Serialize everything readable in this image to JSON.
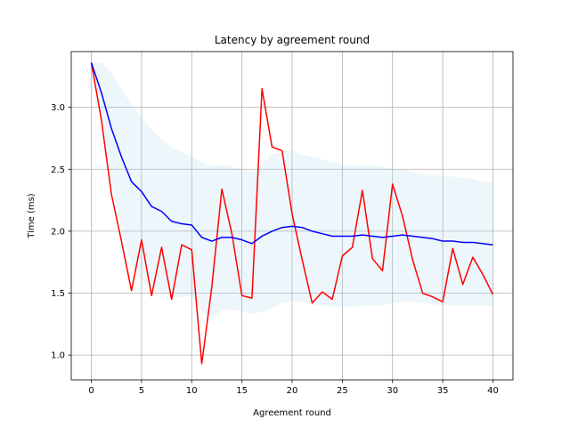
{
  "chart_data": {
    "type": "line",
    "title": "Latency by agreement round",
    "xlabel": "Agreement round",
    "ylabel": "Time (ms)",
    "xlim": [
      -2,
      42
    ],
    "ylim": [
      0.8,
      3.45
    ],
    "xticks": [
      0,
      5,
      10,
      15,
      20,
      25,
      30,
      35,
      40
    ],
    "yticks": [
      1.0,
      1.5,
      2.0,
      2.5,
      3.0
    ],
    "ytick_labels": [
      "1.0",
      "1.5",
      "2.0",
      "2.5",
      "3.0"
    ],
    "grid": true,
    "x": [
      0,
      1,
      2,
      3,
      4,
      5,
      6,
      7,
      8,
      9,
      10,
      11,
      12,
      13,
      14,
      15,
      16,
      17,
      18,
      19,
      20,
      21,
      22,
      23,
      24,
      25,
      26,
      27,
      28,
      29,
      30,
      31,
      32,
      33,
      34,
      35,
      36,
      37,
      38,
      39,
      40
    ],
    "series": [
      {
        "color": "#ff0000",
        "values": [
          3.36,
          2.9,
          2.3,
          1.92,
          1.52,
          1.93,
          1.48,
          1.87,
          1.45,
          1.89,
          1.85,
          0.93,
          1.55,
          2.34,
          1.98,
          1.48,
          1.46,
          3.15,
          2.68,
          2.65,
          2.14,
          1.77,
          1.42,
          1.51,
          1.45,
          1.8,
          1.87,
          2.33,
          1.78,
          1.68,
          2.38,
          2.12,
          1.77,
          1.5,
          1.47,
          1.43,
          1.86,
          1.57,
          1.79,
          1.65,
          1.49
        ]
      },
      {
        "color": "#0000ff",
        "values": [
          3.36,
          3.12,
          2.83,
          2.6,
          2.4,
          2.32,
          2.2,
          2.16,
          2.08,
          2.06,
          2.05,
          1.95,
          1.92,
          1.95,
          1.95,
          1.93,
          1.9,
          1.96,
          2.0,
          2.03,
          2.04,
          2.03,
          2.0,
          1.98,
          1.96,
          1.96,
          1.96,
          1.97,
          1.96,
          1.95,
          1.96,
          1.97,
          1.96,
          1.95,
          1.94,
          1.92,
          1.92,
          1.91,
          1.91,
          1.9,
          1.89
        ]
      }
    ],
    "band": {
      "color": "#add8e6",
      "upper": [
        3.36,
        3.36,
        3.28,
        3.15,
        3.02,
        2.92,
        2.82,
        2.74,
        2.68,
        2.64,
        2.6,
        2.56,
        2.52,
        2.54,
        2.52,
        2.5,
        2.48,
        2.54,
        2.62,
        2.64,
        2.65,
        2.62,
        2.6,
        2.58,
        2.56,
        2.54,
        2.53,
        2.53,
        2.53,
        2.52,
        2.5,
        2.5,
        2.48,
        2.46,
        2.45,
        2.45,
        2.44,
        2.43,
        2.42,
        2.4,
        2.39
      ],
      "lower": [
        3.36,
        2.95,
        2.42,
        2.02,
        1.72,
        1.6,
        1.55,
        1.5,
        1.47,
        1.47,
        1.48,
        1.35,
        1.3,
        1.36,
        1.37,
        1.35,
        1.33,
        1.35,
        1.38,
        1.42,
        1.43,
        1.43,
        1.41,
        1.4,
        1.39,
        1.39,
        1.39,
        1.4,
        1.4,
        1.4,
        1.42,
        1.43,
        1.43,
        1.42,
        1.41,
        1.4,
        1.4,
        1.4,
        1.4,
        1.4,
        1.39
      ]
    }
  }
}
